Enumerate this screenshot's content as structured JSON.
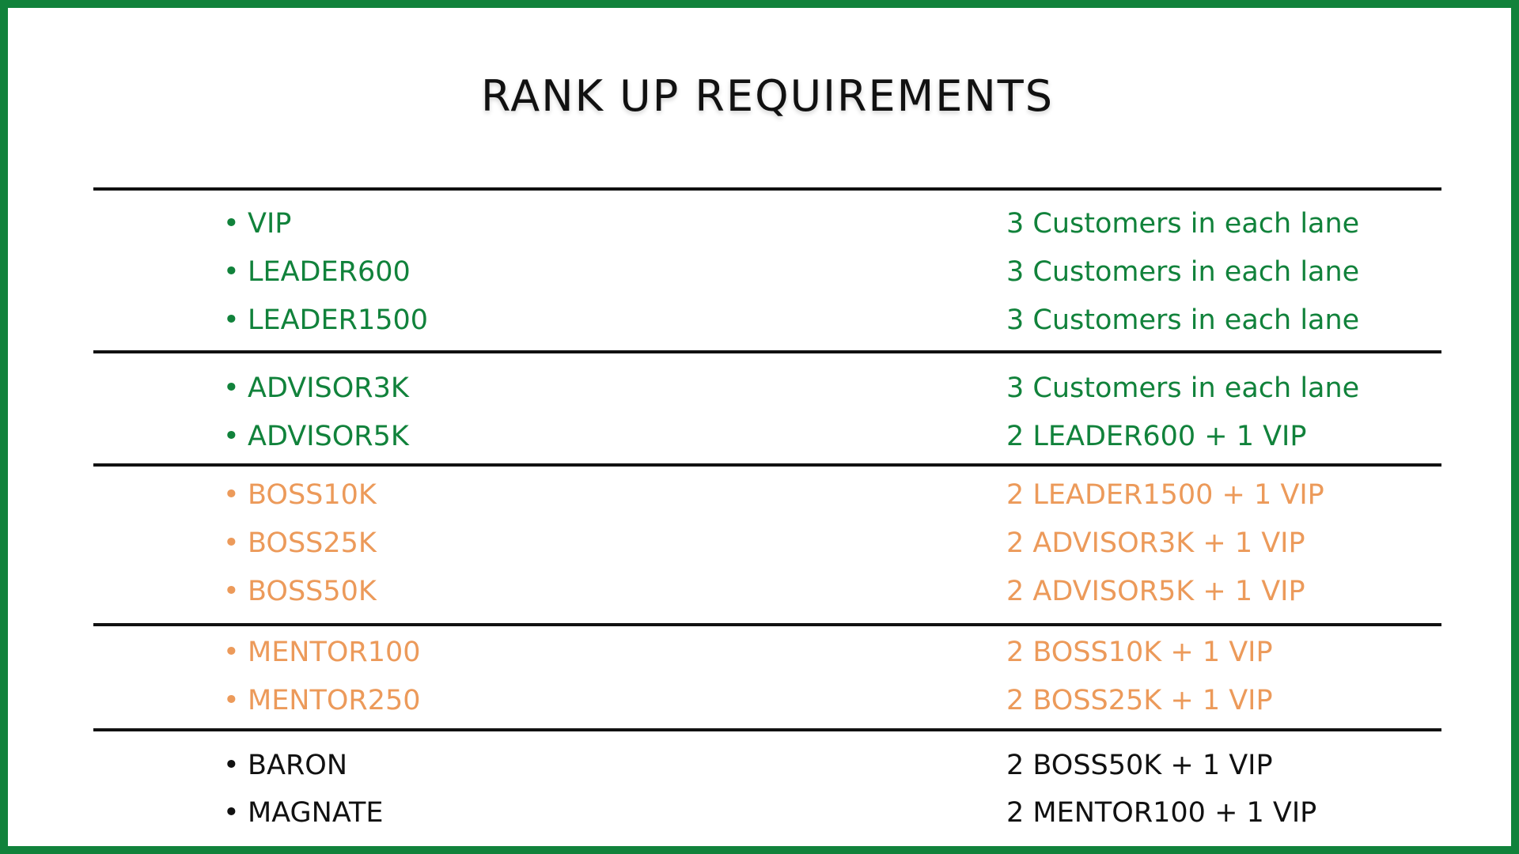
{
  "title": "RANK UP REQUIREMENTS",
  "colors": {
    "frame": "#11823b",
    "green": "#11823b",
    "orange": "#ec9a5a",
    "black": "#111111"
  },
  "groups": [
    {
      "color": "green",
      "rows": [
        {
          "rank": "VIP",
          "requirement": "3 Customers in each lane"
        },
        {
          "rank": "LEADER600",
          "requirement": "3 Customers in each lane"
        },
        {
          "rank": "LEADER1500",
          "requirement": "3 Customers in each lane"
        }
      ]
    },
    {
      "color": "green",
      "rows": [
        {
          "rank": "ADVISOR3K",
          "requirement": "3 Customers in each lane"
        },
        {
          "rank": "ADVISOR5K",
          "requirement": "2 LEADER600 + 1 VIP"
        }
      ]
    },
    {
      "color": "orange",
      "rows": [
        {
          "rank": "BOSS10K",
          "requirement": "2 LEADER1500 + 1 VIP"
        },
        {
          "rank": "BOSS25K",
          "requirement": "2 ADVISOR3K + 1 VIP"
        },
        {
          "rank": "BOSS50K",
          "requirement": "2 ADVISOR5K + 1 VIP"
        }
      ]
    },
    {
      "color": "orange",
      "rows": [
        {
          "rank": "MENTOR100",
          "requirement": "2 BOSS10K + 1 VIP"
        },
        {
          "rank": "MENTOR250",
          "requirement": "2 BOSS25K + 1 VIP"
        }
      ]
    },
    {
      "color": "black",
      "rows": [
        {
          "rank": "BARON",
          "requirement": "2 BOSS50K + 1 VIP"
        },
        {
          "rank": "MAGNATE",
          "requirement": "2 MENTOR100 + 1 VIP"
        }
      ]
    }
  ]
}
